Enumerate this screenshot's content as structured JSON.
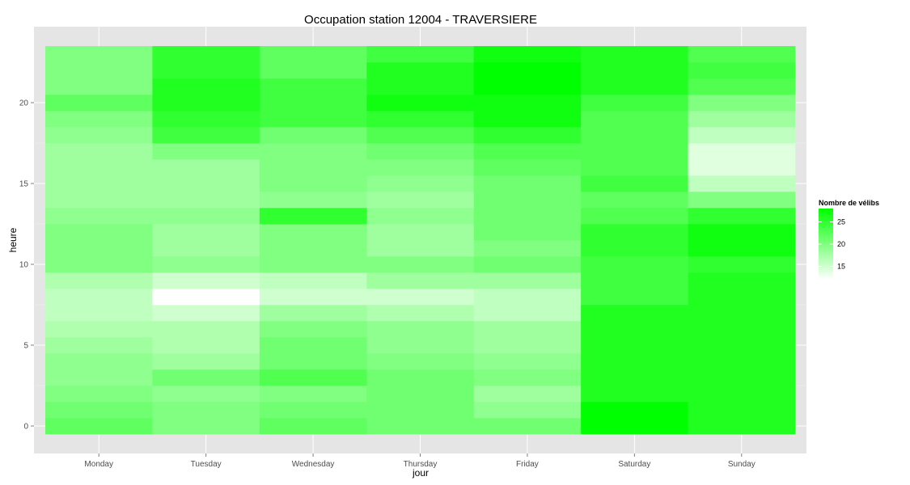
{
  "chart_data": {
    "type": "heatmap",
    "title": "Occupation station 12004 - TRAVERSIERE",
    "xlabel": "jour",
    "ylabel": "heure",
    "x_categories": [
      "Monday",
      "Tuesday",
      "Wednesday",
      "Thursday",
      "Friday",
      "Saturday",
      "Sunday"
    ],
    "y_values": [
      0,
      1,
      2,
      3,
      4,
      5,
      6,
      7,
      8,
      9,
      10,
      11,
      12,
      13,
      14,
      15,
      16,
      17,
      18,
      19,
      20,
      21,
      22,
      23
    ],
    "y_ticks": [
      0,
      5,
      10,
      15,
      20
    ],
    "ylim": [
      -0.5,
      23.5
    ],
    "grid": true,
    "color_scale": {
      "low": "#ffffff",
      "high": "#00ff00",
      "min": 12,
      "max": 28
    },
    "legend": {
      "title": "Nombre de vélibs",
      "ticks": [
        15,
        20,
        25
      ],
      "placement": "right"
    },
    "values": [
      [
        22,
        20,
        22,
        21,
        21,
        28,
        26
      ],
      [
        21,
        20,
        21,
        21,
        19,
        28,
        26
      ],
      [
        20,
        19,
        20,
        21,
        18,
        26,
        26
      ],
      [
        19,
        21,
        23,
        21,
        20,
        26,
        26
      ],
      [
        19,
        18,
        21,
        20,
        19,
        26,
        26
      ],
      [
        18,
        17,
        21,
        19,
        18,
        26,
        26
      ],
      [
        17,
        17,
        20,
        19,
        18,
        26,
        26
      ],
      [
        16,
        15,
        18,
        17,
        16,
        26,
        26
      ],
      [
        16,
        12,
        15,
        15,
        16,
        24,
        26
      ],
      [
        17,
        15,
        16,
        18,
        18,
        24,
        26
      ],
      [
        20,
        19,
        20,
        20,
        21,
        24,
        25
      ],
      [
        20,
        18,
        20,
        18,
        20,
        25,
        27
      ],
      [
        20,
        18,
        20,
        18,
        21,
        25,
        27
      ],
      [
        19,
        19,
        25,
        19,
        21,
        23,
        25
      ],
      [
        18,
        18,
        19,
        18,
        21,
        22,
        20
      ],
      [
        18,
        18,
        20,
        19,
        21,
        24,
        16
      ],
      [
        18,
        18,
        20,
        20,
        22,
        23,
        14
      ],
      [
        18,
        20,
        20,
        21,
        23,
        23,
        14
      ],
      [
        19,
        24,
        21,
        23,
        25,
        23,
        16
      ],
      [
        20,
        25,
        24,
        25,
        27,
        23,
        18
      ],
      [
        22,
        26,
        24,
        27,
        27,
        24,
        20
      ],
      [
        20,
        26,
        24,
        26,
        28,
        26,
        23
      ],
      [
        20,
        25,
        22,
        26,
        28,
        26,
        24
      ],
      [
        20,
        25,
        22,
        24,
        27,
        26,
        23
      ]
    ]
  }
}
